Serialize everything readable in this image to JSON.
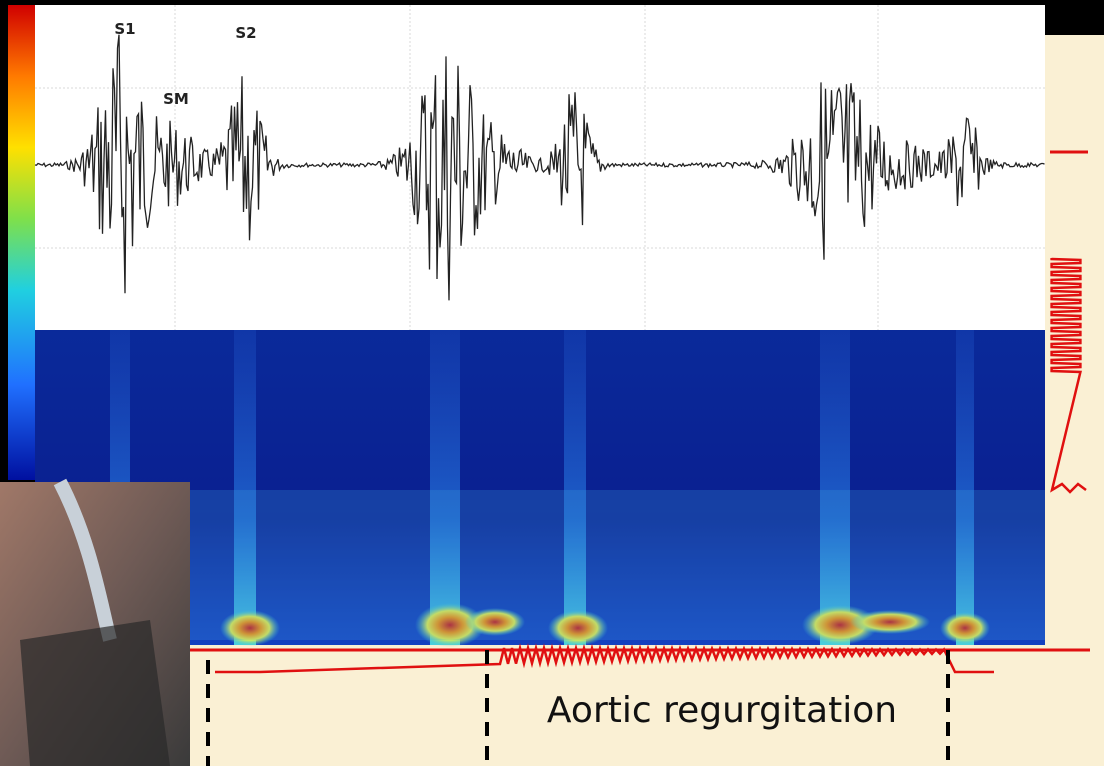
{
  "labels": {
    "s1": "S1",
    "s2": "S2",
    "sm": "SM"
  },
  "caption": "Aortic regurgitation"
}
